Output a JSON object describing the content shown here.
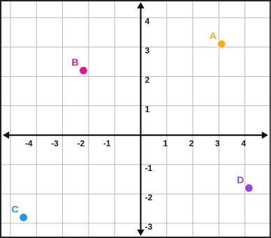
{
  "chart_data": {
    "type": "scatter",
    "xlim": [
      -5.4,
      5.0
    ],
    "ylim": [
      -3.5,
      4.6
    ],
    "grid": true,
    "x_ticks": [
      -4,
      -3,
      -2,
      -1,
      1,
      2,
      3,
      4
    ],
    "y_ticks": [
      -3,
      -2,
      -1,
      1,
      2,
      3,
      4
    ],
    "points": [
      {
        "label": "A",
        "x": 3.1,
        "y": 3.1,
        "color": "#F2B01E"
      },
      {
        "label": "B",
        "x": -2.2,
        "y": 2.2,
        "color": "#E8139A"
      },
      {
        "label": "C",
        "x": -4.5,
        "y": -2.8,
        "color": "#2196E8"
      },
      {
        "label": "D",
        "x": 4.15,
        "y": -1.8,
        "color": "#9C45D8"
      }
    ]
  },
  "colors": {
    "grid": "#b8b8b8",
    "axis": "#111111",
    "frame": "#222222"
  }
}
